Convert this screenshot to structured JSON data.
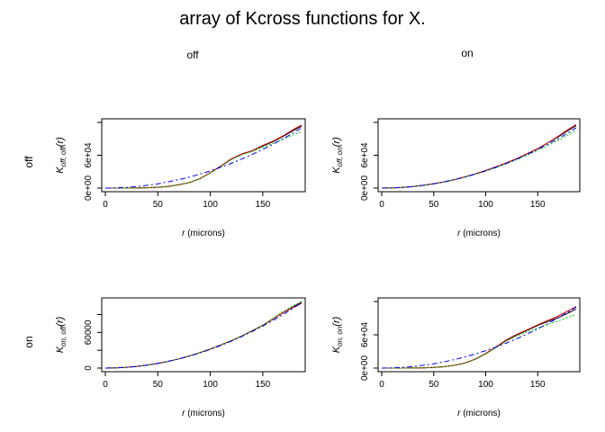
{
  "title": "array of Kcross functions for X.",
  "column_labels": [
    "off",
    "on"
  ],
  "row_labels": [
    "off",
    "on"
  ],
  "chart_data": [
    {
      "type": "line",
      "row": 0,
      "col": 0,
      "xlabel_italic": "r",
      "xlabel_unit": "(microns)",
      "ylabel": {
        "main": "K",
        "sub": "off, off",
        "arg": "(r)"
      },
      "xlim": [
        0,
        187
      ],
      "ylim": [
        0,
        120000
      ],
      "x_ticks": [
        0,
        50,
        100,
        150
      ],
      "y_ticks": [
        0,
        60000,
        120000
      ],
      "y_tick_labels": [
        "0e+00",
        "6e+04",
        ""
      ],
      "series": [
        {
          "color": "#000000",
          "dash": "",
          "x": [
            0,
            10,
            20,
            30,
            40,
            50,
            60,
            70,
            80,
            90,
            100,
            110,
            120,
            130,
            140,
            150,
            160,
            170,
            180,
            187
          ],
          "y": [
            0,
            0,
            50,
            200,
            600,
            1500,
            3000,
            6000,
            10000,
            17000,
            28000,
            40000,
            53000,
            62000,
            68000,
            77000,
            85000,
            95000,
            106000,
            113000
          ]
        },
        {
          "color": "#cc0000",
          "dash": "",
          "x": [
            0,
            10,
            20,
            30,
            40,
            50,
            60,
            70,
            80,
            90,
            100,
            110,
            120,
            130,
            140,
            150,
            160,
            170,
            180,
            187
          ],
          "y": [
            0,
            0,
            50,
            200,
            650,
            1600,
            3100,
            6100,
            10100,
            17100,
            28100,
            40500,
            53500,
            62500,
            68500,
            78000,
            86000,
            96000,
            108000,
            115000
          ]
        },
        {
          "color": "#00cc00",
          "dash": "2,2",
          "x": [
            0,
            10,
            20,
            30,
            40,
            50,
            60,
            70,
            80,
            90,
            100,
            110,
            120,
            130,
            140,
            150,
            160,
            170,
            180,
            187
          ],
          "y": [
            0,
            0,
            50,
            200,
            600,
            1500,
            3000,
            6000,
            10000,
            17000,
            27500,
            39500,
            52000,
            61000,
            67000,
            75000,
            82000,
            90000,
            98000,
            103000
          ]
        },
        {
          "color": "#0000ee",
          "dash": "6,3,2,3",
          "x": [
            0,
            10,
            20,
            30,
            40,
            50,
            60,
            70,
            80,
            90,
            100,
            110,
            120,
            130,
            140,
            150,
            160,
            170,
            180,
            187
          ],
          "y": [
            0,
            314,
            1257,
            2827,
            5027,
            7854,
            11310,
            15394,
            20106,
            25447,
            31416,
            38013,
            45239,
            53093,
            61575,
            70686,
            80425,
            90792,
            101788,
            109956
          ]
        }
      ]
    },
    {
      "type": "line",
      "row": 0,
      "col": 1,
      "xlabel_italic": "r",
      "xlabel_unit": "(microns)",
      "ylabel": {
        "main": "K",
        "sub": "off, on",
        "arg": "(r)"
      },
      "xlim": [
        0,
        187
      ],
      "ylim": [
        0,
        120000
      ],
      "x_ticks": [
        0,
        50,
        100,
        150
      ],
      "y_ticks": [
        0,
        60000,
        120000
      ],
      "y_tick_labels": [
        "0e+00",
        "6e+04",
        ""
      ],
      "series": [
        {
          "color": "#000000",
          "dash": "",
          "x": [
            0,
            10,
            20,
            30,
            40,
            50,
            60,
            70,
            80,
            90,
            100,
            110,
            120,
            130,
            140,
            150,
            160,
            170,
            180,
            187
          ],
          "y": [
            0,
            300,
            1300,
            2900,
            5100,
            8000,
            11400,
            15500,
            20500,
            26000,
            32000,
            39000,
            46000,
            54000,
            63000,
            72000,
            83000,
            94000,
            106000,
            114000
          ]
        },
        {
          "color": "#cc0000",
          "dash": "",
          "x": [
            0,
            10,
            20,
            30,
            40,
            50,
            60,
            70,
            80,
            90,
            100,
            110,
            120,
            130,
            140,
            150,
            160,
            170,
            180,
            187
          ],
          "y": [
            0,
            300,
            1300,
            2900,
            5100,
            8000,
            11400,
            15500,
            20500,
            26000,
            32000,
            39000,
            46000,
            54000,
            63000,
            72000,
            83000,
            95000,
            108000,
            116000
          ]
        },
        {
          "color": "#00cc00",
          "dash": "2,2",
          "x": [
            0,
            10,
            20,
            30,
            40,
            50,
            60,
            70,
            80,
            90,
            100,
            110,
            120,
            130,
            140,
            150,
            160,
            170,
            180,
            187
          ],
          "y": [
            0,
            300,
            1250,
            2850,
            5000,
            7900,
            11200,
            15300,
            20000,
            25200,
            31000,
            37500,
            44500,
            52000,
            60000,
            69000,
            78000,
            88000,
            98000,
            105000
          ]
        },
        {
          "color": "#0000ee",
          "dash": "6,3,2,3",
          "x": [
            0,
            10,
            20,
            30,
            40,
            50,
            60,
            70,
            80,
            90,
            100,
            110,
            120,
            130,
            140,
            150,
            160,
            170,
            180,
            187
          ],
          "y": [
            0,
            314,
            1257,
            2827,
            5027,
            7854,
            11310,
            15394,
            20106,
            25447,
            31416,
            38013,
            45239,
            53093,
            61575,
            70686,
            80425,
            90792,
            101788,
            109956
          ]
        }
      ]
    },
    {
      "type": "line",
      "row": 1,
      "col": 0,
      "xlabel_italic": "r",
      "xlabel_unit": "(microns)",
      "ylabel": {
        "main": "K",
        "sub": "on, off",
        "arg": "(r)"
      },
      "xlim": [
        0,
        187
      ],
      "ylim": [
        0,
        112000
      ],
      "x_ticks": [
        0,
        50,
        100,
        150
      ],
      "y_ticks": [
        0,
        30000,
        60000,
        90000
      ],
      "y_tick_labels": [
        "0",
        "",
        "60000",
        ""
      ],
      "series": [
        {
          "color": "#000000",
          "dash": "",
          "x": [
            0,
            10,
            20,
            30,
            40,
            50,
            60,
            70,
            80,
            90,
            100,
            110,
            120,
            130,
            140,
            150,
            160,
            170,
            180,
            187
          ],
          "y": [
            0,
            300,
            1300,
            2900,
            5100,
            8000,
            11400,
            15500,
            20500,
            26000,
            32000,
            39000,
            46000,
            54000,
            63000,
            72000,
            83000,
            94000,
            104000,
            111000
          ]
        },
        {
          "color": "#cc0000",
          "dash": "",
          "x": [
            0,
            10,
            20,
            30,
            40,
            50,
            60,
            70,
            80,
            90,
            100,
            110,
            120,
            130,
            140,
            150,
            160,
            170,
            180,
            187
          ],
          "y": [
            0,
            300,
            1300,
            2900,
            5100,
            8000,
            11400,
            15500,
            20500,
            26000,
            32000,
            39000,
            46000,
            54000,
            63000,
            72000,
            83000,
            94000,
            103000,
            109000
          ]
        },
        {
          "color": "#00cc00",
          "dash": "2,2",
          "x": [
            0,
            10,
            20,
            30,
            40,
            50,
            60,
            70,
            80,
            90,
            100,
            110,
            120,
            130,
            140,
            150,
            160,
            170,
            180,
            187
          ],
          "y": [
            0,
            300,
            1300,
            2900,
            5100,
            8000,
            11400,
            15500,
            20500,
            26000,
            32000,
            39000,
            46000,
            54000,
            63000,
            72000,
            84000,
            96000,
            106000,
            112000
          ]
        },
        {
          "color": "#0000ee",
          "dash": "6,3,2,3",
          "x": [
            0,
            10,
            20,
            30,
            40,
            50,
            60,
            70,
            80,
            90,
            100,
            110,
            120,
            130,
            140,
            150,
            160,
            170,
            180,
            187
          ],
          "y": [
            0,
            314,
            1257,
            2827,
            5027,
            7854,
            11310,
            15394,
            20106,
            25447,
            31416,
            38013,
            45239,
            53093,
            61575,
            70686,
            80425,
            90792,
            101788,
            109956
          ]
        }
      ]
    },
    {
      "type": "line",
      "row": 1,
      "col": 1,
      "xlabel_italic": "r",
      "xlabel_unit": "(microns)",
      "ylabel": {
        "main": "K",
        "sub": "on, on",
        "arg": "(r)"
      },
      "xlim": [
        0,
        187
      ],
      "ylim": [
        0,
        120000
      ],
      "x_ticks": [
        0,
        50,
        100,
        150
      ],
      "y_ticks": [
        0,
        60000,
        120000
      ],
      "y_tick_labels": [
        "0e+00",
        "6e+04",
        ""
      ],
      "series": [
        {
          "color": "#000000",
          "dash": "",
          "x": [
            0,
            10,
            20,
            30,
            40,
            50,
            60,
            70,
            80,
            90,
            100,
            110,
            120,
            130,
            140,
            150,
            160,
            170,
            180,
            187
          ],
          "y": [
            0,
            0,
            50,
            200,
            500,
            1200,
            2500,
            5000,
            9000,
            16000,
            26000,
            38000,
            50000,
            60000,
            68000,
            77000,
            84000,
            91000,
            100000,
            106000
          ]
        },
        {
          "color": "#cc0000",
          "dash": "",
          "x": [
            0,
            10,
            20,
            30,
            40,
            50,
            60,
            70,
            80,
            90,
            100,
            110,
            120,
            130,
            140,
            150,
            160,
            170,
            180,
            187
          ],
          "y": [
            0,
            0,
            50,
            200,
            550,
            1300,
            2600,
            5100,
            9100,
            16100,
            26500,
            38500,
            51000,
            61000,
            69000,
            78000,
            86000,
            94000,
            104000,
            111000
          ]
        },
        {
          "color": "#00cc00",
          "dash": "2,2",
          "x": [
            0,
            10,
            20,
            30,
            40,
            50,
            60,
            70,
            80,
            90,
            100,
            110,
            120,
            130,
            140,
            150,
            160,
            170,
            180,
            187
          ],
          "y": [
            0,
            0,
            50,
            200,
            500,
            1200,
            2400,
            4800,
            8800,
            15500,
            25500,
            37000,
            49000,
            58000,
            65000,
            72000,
            79000,
            85000,
            92000,
            97000
          ]
        },
        {
          "color": "#0000ee",
          "dash": "6,3,2,3",
          "x": [
            0,
            10,
            20,
            30,
            40,
            50,
            60,
            70,
            80,
            90,
            100,
            110,
            120,
            130,
            140,
            150,
            160,
            170,
            180,
            187
          ],
          "y": [
            0,
            314,
            1257,
            2827,
            5027,
            7854,
            11310,
            15394,
            20106,
            25447,
            31416,
            38013,
            45239,
            53093,
            61575,
            70686,
            80425,
            90792,
            101788,
            109956
          ]
        }
      ]
    }
  ]
}
